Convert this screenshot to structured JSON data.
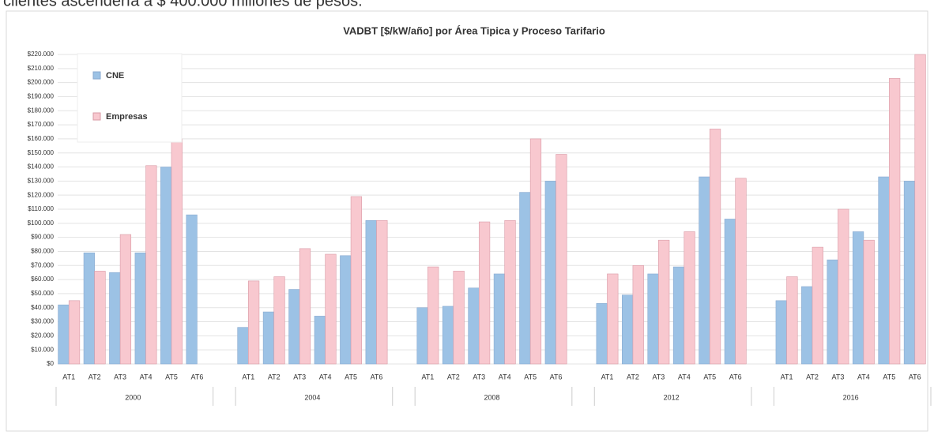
{
  "page_text": "clientes ascendería a $ 400.000 millones de pesos.",
  "chart_data": {
    "type": "bar",
    "title": "VADBT [$/kW/año] por Área Tipica y Proceso Tarifario",
    "group_labels": [
      "2000",
      "2004",
      "2008",
      "2012",
      "2016"
    ],
    "categories": [
      "AT1",
      "AT2",
      "AT3",
      "AT4",
      "AT5",
      "AT6",
      "AT1",
      "AT2",
      "AT3",
      "AT4",
      "AT5",
      "AT6",
      "AT1",
      "AT2",
      "AT3",
      "AT4",
      "AT5",
      "AT6",
      "AT1",
      "AT2",
      "AT3",
      "AT4",
      "AT5",
      "AT6",
      "AT1",
      "AT2",
      "AT3",
      "AT4",
      "AT5",
      "AT6"
    ],
    "series": [
      {
        "name": "CNE",
        "color": "#9cc2e5",
        "values": [
          42000,
          79000,
          65000,
          79000,
          140000,
          106000,
          26000,
          37000,
          53000,
          34000,
          77000,
          102000,
          40000,
          41000,
          54000,
          64000,
          122000,
          130000,
          43000,
          49000,
          64000,
          69000,
          133000,
          103000,
          45000,
          55000,
          74000,
          94000,
          133000,
          130000
        ]
      },
      {
        "name": "Empresas",
        "color": "#f8c8cf",
        "values": [
          45000,
          66000,
          92000,
          141000,
          160000,
          null,
          59000,
          62000,
          82000,
          78000,
          119000,
          102000,
          69000,
          66000,
          101000,
          102000,
          160000,
          149000,
          64000,
          70000,
          88000,
          94000,
          167000,
          132000,
          62000,
          83000,
          110000,
          88000,
          203000,
          220000
        ]
      }
    ],
    "ylim": [
      0,
      220000
    ],
    "yticks": [
      {
        "value": 0,
        "label": "$0"
      },
      {
        "value": 10000,
        "label": "$10.000"
      },
      {
        "value": 20000,
        "label": "$20.000"
      },
      {
        "value": 30000,
        "label": "$30.000"
      },
      {
        "value": 40000,
        "label": "$40.000"
      },
      {
        "value": 50000,
        "label": "$50.000"
      },
      {
        "value": 60000,
        "label": "$60.000"
      },
      {
        "value": 70000,
        "label": "$70.000"
      },
      {
        "value": 80000,
        "label": "$80.000"
      },
      {
        "value": 90000,
        "label": "$90.000"
      },
      {
        "value": 100000,
        "label": "$100.000"
      },
      {
        "value": 110000,
        "label": "$110.000"
      },
      {
        "value": 120000,
        "label": "$120.000"
      },
      {
        "value": 130000,
        "label": "$130.000"
      },
      {
        "value": 140000,
        "label": "$140.000"
      },
      {
        "value": 150000,
        "label": "$150.000"
      },
      {
        "value": 160000,
        "label": "$160.000"
      },
      {
        "value": 170000,
        "label": "$170.000"
      },
      {
        "value": 180000,
        "label": "$180.000"
      },
      {
        "value": 190000,
        "label": "$190.000"
      },
      {
        "value": 200000,
        "label": "$200.000"
      },
      {
        "value": 210000,
        "label": "$210.000"
      },
      {
        "value": 220000,
        "label": "$220.000"
      }
    ],
    "grid": true,
    "legend": "top-left"
  }
}
